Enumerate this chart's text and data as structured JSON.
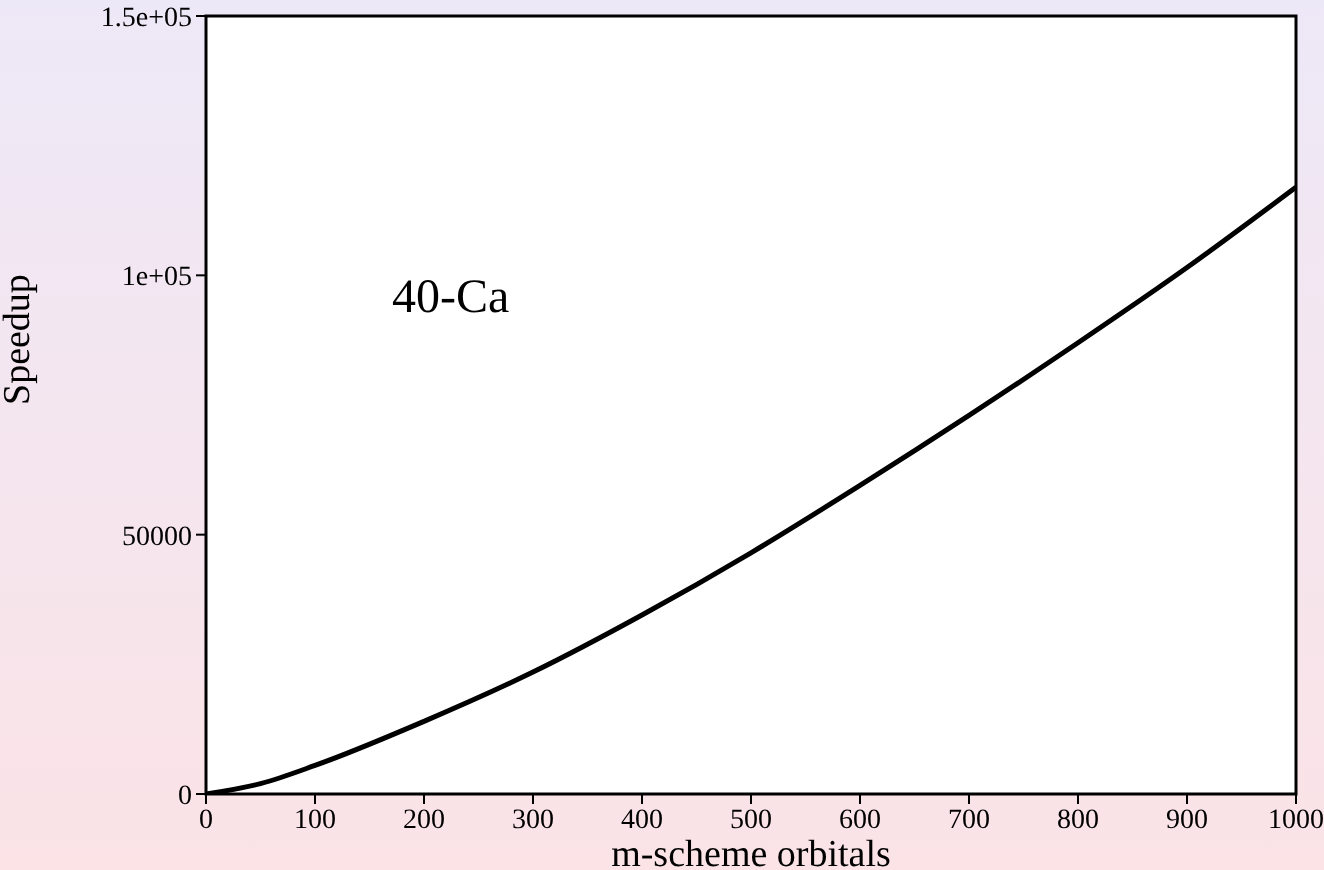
{
  "chart_data": {
    "type": "line",
    "xlabel": "m-scheme orbitals",
    "ylabel": "Speedup",
    "annotations": [
      "40-Ca"
    ],
    "x": [
      0,
      50,
      100,
      200,
      300,
      400,
      500,
      600,
      700,
      800,
      900,
      1000
    ],
    "series": [
      {
        "color": "#000000",
        "values": [
          0,
          2000,
          5500,
          14000,
          23500,
          34500,
          46500,
          59500,
          73000,
          87000,
          101500,
          117000
        ]
      }
    ],
    "xlim": [
      0,
      1000
    ],
    "xticks": [
      0,
      100,
      200,
      300,
      400,
      500,
      600,
      700,
      800,
      900,
      1000
    ],
    "ylim": [
      0,
      150000
    ],
    "yticks": [
      0,
      50000,
      {
        "value": 100000,
        "label": "1e+05"
      },
      {
        "value": 150000,
        "label": "1.5e+05"
      }
    ],
    "legend": false,
    "marker": "none",
    "line_style": "solid"
  }
}
